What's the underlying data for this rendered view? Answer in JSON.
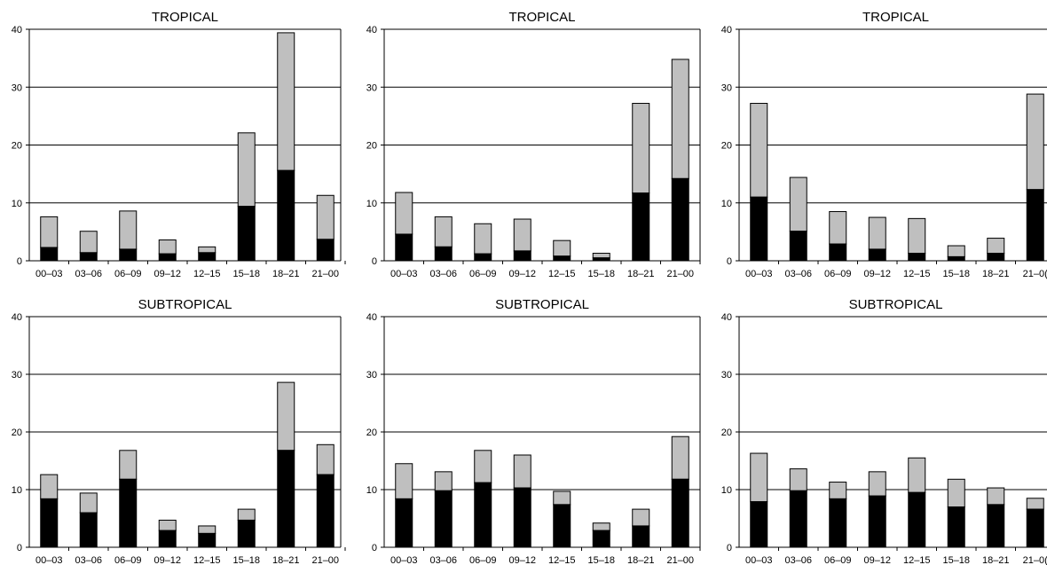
{
  "colors": {
    "bottom_segment": "#000000",
    "top_segment": "#bfbfbf",
    "axis": "#000000",
    "grid": "#000000"
  },
  "chart_data": [
    {
      "type": "bar",
      "stacked": true,
      "title": "TROPICAL",
      "categories": [
        "00–03",
        "03–06",
        "06–09",
        "09–12",
        "12–15",
        "15–18",
        "18–21",
        "21–00"
      ],
      "ylim": [
        0,
        40
      ],
      "yticks": [
        "0",
        "10",
        "20",
        "30",
        "40"
      ],
      "grid": true,
      "series": [
        {
          "values": [
            2.3,
            1.4,
            2.0,
            1.2,
            1.4,
            9.4,
            15.6,
            3.7
          ]
        },
        {
          "values": [
            5.3,
            3.7,
            6.6,
            2.4,
            1.0,
            12.7,
            23.8,
            7.6
          ]
        }
      ]
    },
    {
      "type": "bar",
      "stacked": true,
      "title": "TROPICAL",
      "categories": [
        "00–03",
        "03–06",
        "06–09",
        "09–12",
        "12–15",
        "15–18",
        "18–21",
        "21–00"
      ],
      "ylim": [
        0,
        40
      ],
      "yticks": [
        "0",
        "10",
        "20",
        "30",
        "40"
      ],
      "grid": true,
      "series": [
        {
          "values": [
            4.6,
            2.4,
            1.2,
            1.7,
            0.8,
            0.5,
            11.7,
            14.2
          ]
        },
        {
          "values": [
            7.2,
            5.2,
            5.2,
            5.5,
            2.7,
            0.8,
            15.5,
            20.6
          ]
        }
      ]
    },
    {
      "type": "bar",
      "stacked": true,
      "title": "TROPICAL",
      "categories": [
        "00–03",
        "03–06",
        "06–09",
        "09–12",
        "12–15",
        "15–18",
        "18–21",
        "21–0("
      ],
      "ylim": [
        0,
        40
      ],
      "yticks": [
        "0",
        "10",
        "20",
        "30",
        "40"
      ],
      "grid": true,
      "series": [
        {
          "values": [
            11.0,
            5.1,
            2.9,
            2.0,
            1.3,
            0.7,
            1.3,
            12.3
          ]
        },
        {
          "values": [
            16.2,
            9.3,
            5.6,
            5.5,
            6.0,
            1.9,
            2.6,
            16.5
          ]
        }
      ]
    },
    {
      "type": "bar",
      "stacked": true,
      "title": "SUBTROPICAL",
      "categories": [
        "00–03",
        "03–06",
        "06–09",
        "09–12",
        "12–15",
        "15–18",
        "18–21",
        "21–00"
      ],
      "ylim": [
        0,
        40
      ],
      "yticks": [
        "0",
        "10",
        "20",
        "30",
        "40"
      ],
      "grid": true,
      "series": [
        {
          "values": [
            8.4,
            6.0,
            11.8,
            2.9,
            2.4,
            4.7,
            16.8,
            12.6
          ]
        },
        {
          "values": [
            4.2,
            3.4,
            5.0,
            1.8,
            1.3,
            1.9,
            11.8,
            5.2
          ]
        }
      ]
    },
    {
      "type": "bar",
      "stacked": true,
      "title": "SUBTROPICAL",
      "categories": [
        "00–03",
        "03–06",
        "06–09",
        "09–12",
        "12–15",
        "15–18",
        "18–21",
        "21–00"
      ],
      "ylim": [
        0,
        40
      ],
      "yticks": [
        "0",
        "10",
        "20",
        "30",
        "40"
      ],
      "grid": true,
      "series": [
        {
          "values": [
            8.4,
            9.8,
            11.2,
            10.3,
            7.4,
            2.9,
            3.7,
            11.8
          ]
        },
        {
          "values": [
            6.1,
            3.3,
            5.6,
            5.7,
            2.3,
            1.3,
            2.9,
            7.4
          ]
        }
      ]
    },
    {
      "type": "bar",
      "stacked": true,
      "title": "SUBTROPICAL",
      "categories": [
        "00–03",
        "03–06",
        "06–09",
        "09–12",
        "12–15",
        "15–18",
        "18–21",
        "21–0("
      ],
      "ylim": [
        0,
        40
      ],
      "yticks": [
        "0",
        "10",
        "20",
        "30",
        "40"
      ],
      "grid": true,
      "series": [
        {
          "values": [
            7.9,
            9.8,
            8.4,
            8.9,
            9.5,
            7.0,
            7.4,
            6.6
          ]
        },
        {
          "values": [
            8.4,
            3.8,
            2.9,
            4.2,
            6.0,
            4.8,
            2.9,
            1.9
          ]
        }
      ]
    }
  ]
}
